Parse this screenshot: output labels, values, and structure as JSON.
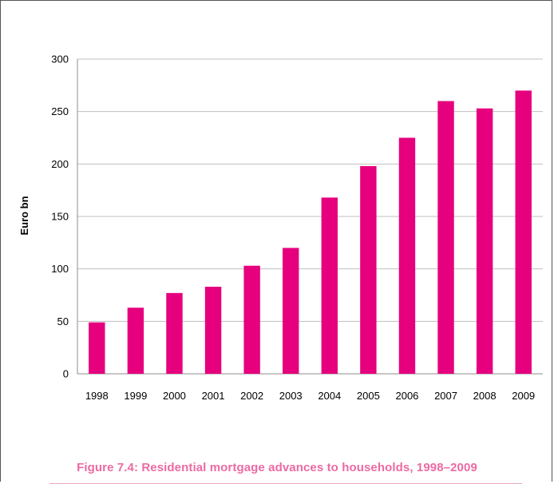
{
  "chart_data": {
    "type": "bar",
    "title": "",
    "xlabel": "",
    "ylabel": "Euro bn",
    "categories": [
      "1998",
      "1999",
      "2000",
      "2001",
      "2002",
      "2003",
      "2004",
      "2005",
      "2006",
      "2007",
      "2008",
      "2009"
    ],
    "values": [
      49,
      63,
      77,
      83,
      103,
      120,
      168,
      198,
      225,
      260,
      253,
      270
    ],
    "ylim": [
      0,
      300
    ],
    "yticks": [
      0,
      50,
      100,
      150,
      200,
      250,
      300
    ],
    "grid": true,
    "legend": "none"
  },
  "caption": "Figure 7.4: Residential mortgage advances to households, 1998–2009",
  "colors": {
    "bar": "#e6007e",
    "caption": "#ec6aa4",
    "grid": "#bfbfbf",
    "rule": "#e8a8c4"
  }
}
